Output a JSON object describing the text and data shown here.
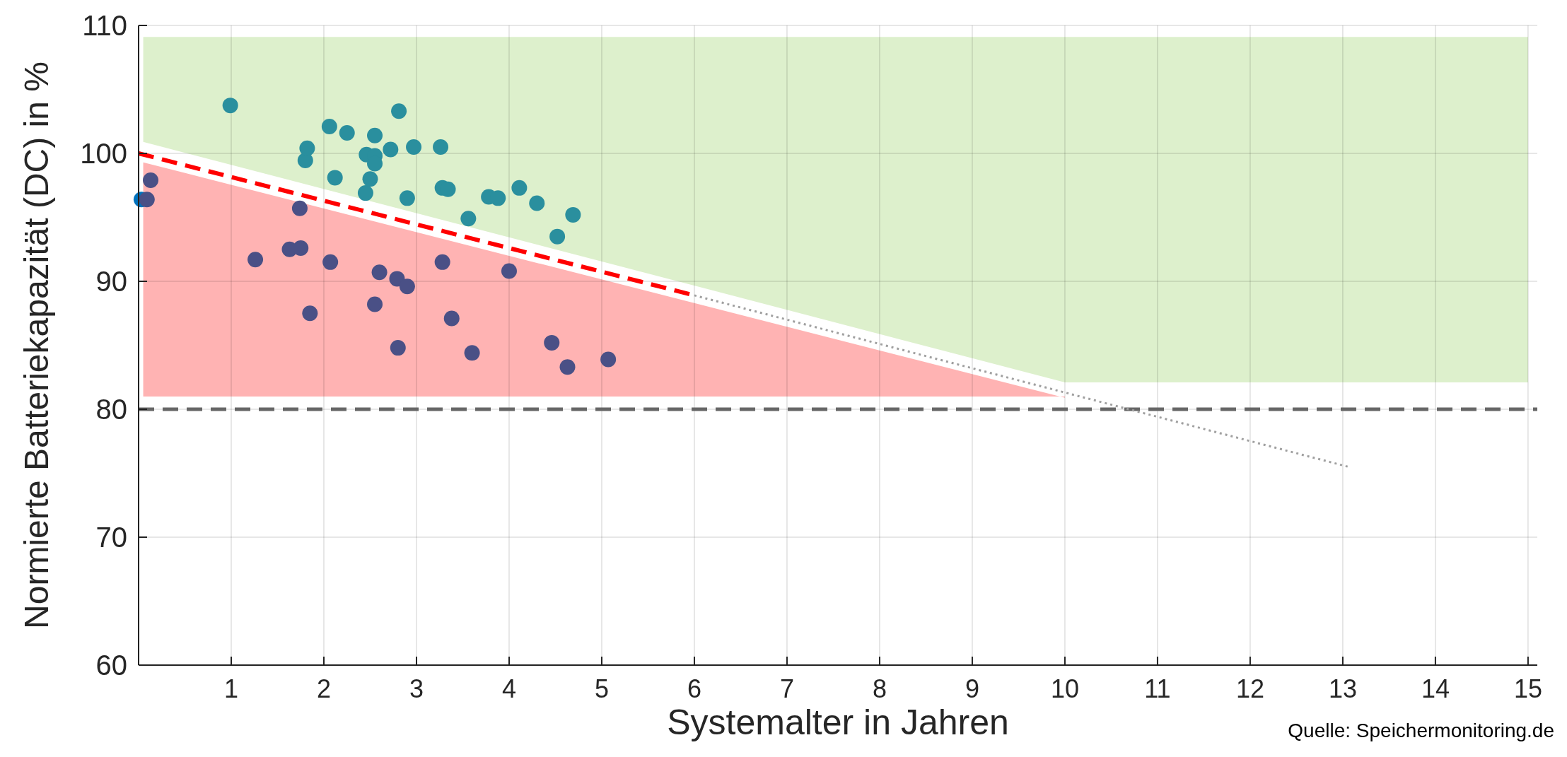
{
  "chart_data": {
    "type": "scatter",
    "xlabel": "Systemalter in Jahren",
    "ylabel": "Normierte Batteriekapazität (DC) in %",
    "xlim": [
      0,
      15.1
    ],
    "ylim": [
      60,
      110
    ],
    "xticks": [
      1,
      2,
      3,
      4,
      5,
      6,
      7,
      8,
      9,
      10,
      11,
      12,
      13,
      14,
      15
    ],
    "yticks": [
      60,
      70,
      80,
      90,
      100,
      110
    ],
    "grid": true,
    "marker": "circle",
    "annotations": [
      "Quelle: Speichermonitoring.de"
    ],
    "ref_lines": [
      {
        "axis": "y",
        "value": 80,
        "color": "#666666",
        "line_style": "dashed"
      }
    ],
    "series": [
      {
        "type": "line",
        "marker": "none",
        "color": "#ddf0cc",
        "x": [
          0.05,
          10,
          15
        ],
        "values": [
          null,
          null,
          null
        ],
        "lower": [
          100.9,
          82.1,
          82.1
        ],
        "upper": [
          109.1,
          109.1,
          109.1
        ]
      },
      {
        "type": "line",
        "marker": "none",
        "color": "#ffb3b3",
        "x": [
          0.05,
          10
        ],
        "values": [
          null,
          null
        ],
        "lower": [
          81,
          81
        ],
        "upper": [
          99.3,
          80.9
        ]
      },
      {
        "type": "line",
        "color": "#ff0000",
        "line_style": "dashed",
        "marker": "none",
        "x": [
          0,
          6
        ],
        "values": [
          100,
          88.9
        ]
      },
      {
        "type": "line",
        "color": "#a0a0a0",
        "line_style": "dotted",
        "marker": "none",
        "x": [
          6,
          13.06
        ],
        "values": [
          88.9,
          75.5
        ]
      },
      {
        "color": "#0072bd",
        "x": [
          0.03
        ],
        "values": [
          96.4
        ]
      },
      {
        "color": "#2a8f9e",
        "x": [
          0.99,
          1.8,
          1.82,
          2.06,
          2.12,
          2.25,
          2.45,
          2.46,
          2.5,
          2.55,
          2.55,
          2.55,
          2.72,
          2.81,
          2.9,
          2.97,
          3.26,
          3.28,
          3.34,
          3.56,
          3.78,
          3.88,
          4.11,
          4.3,
          4.52,
          4.69
        ],
        "values": [
          103.75,
          99.45,
          100.4,
          102.1,
          98.1,
          101.6,
          96.9,
          99.9,
          98,
          101.4,
          99.8,
          99.2,
          100.3,
          103.3,
          96.5,
          100.5,
          100.5,
          97.3,
          97.2,
          94.9,
          96.6,
          96.5,
          97.3,
          96.1,
          93.5,
          95.2
        ]
      },
      {
        "color": "#4a5086",
        "x": [
          0.13,
          0.09,
          1.26,
          1.63,
          1.74,
          1.75,
          1.85,
          2.07,
          2.55,
          2.6,
          2.79,
          2.8,
          2.9,
          3.28,
          3.38,
          3.6,
          4,
          4.46,
          4.63,
          5.07
        ],
        "values": [
          97.9,
          96.4,
          91.7,
          92.5,
          95.7,
          92.6,
          87.5,
          91.5,
          88.2,
          90.7,
          90.2,
          84.8,
          89.6,
          91.5,
          87.1,
          84.4,
          90.8,
          85.2,
          83.3,
          83.9
        ]
      }
    ]
  }
}
